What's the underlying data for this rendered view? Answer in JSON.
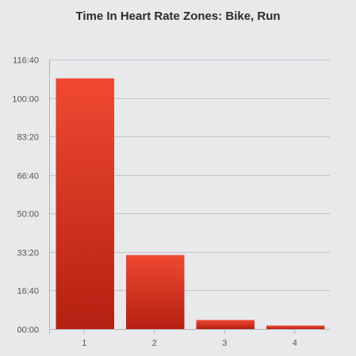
{
  "chart_data": {
    "type": "bar",
    "title": "Time In Heart Rate Zones: Bike, Run",
    "xlabel": "",
    "ylabel": "",
    "categories": [
      "1",
      "2",
      "3",
      "4"
    ],
    "values_minutes": [
      108.5,
      32.0,
      3.9,
      1.5
    ],
    "ylim_minutes": [
      0,
      116.6667
    ],
    "y_ticks": [
      {
        "label": "00:00",
        "value": 0
      },
      {
        "label": "16:40",
        "value": 16.6667
      },
      {
        "label": "33:20",
        "value": 33.3333
      },
      {
        "label": "50:00",
        "value": 50
      },
      {
        "label": "66:40",
        "value": 66.6667
      },
      {
        "label": "83:20",
        "value": 83.3333
      },
      {
        "label": "100:00",
        "value": 100
      },
      {
        "label": "116:40",
        "value": 116.6667
      }
    ],
    "grid": true,
    "legend": "none",
    "colors": {
      "bar_top": "#ef4a33",
      "bar_bottom": "#b52010",
      "grid": "#c4c5c8",
      "axis": "#b0b1b4",
      "background": "#e8e9eb"
    }
  }
}
